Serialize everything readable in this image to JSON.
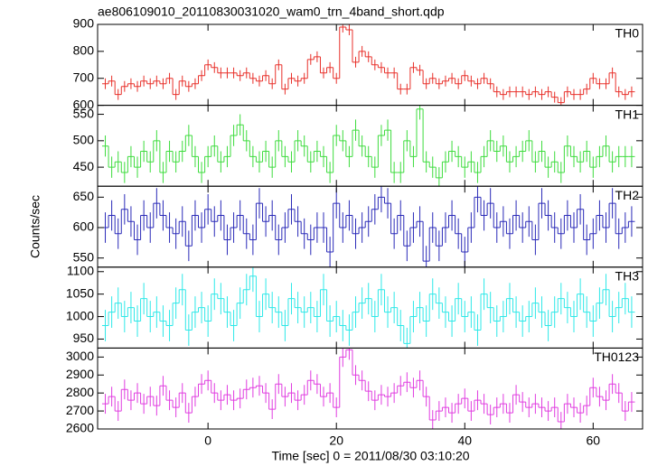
{
  "chart_data": {
    "type": "step",
    "title": "ae806109010_20110830031020_wam0_trn_4band_short.qdp",
    "xlabel": "Time [sec] 0 = 2011/08/30 03:10:20",
    "ylabel": "Counts/sec",
    "xlim": [
      -17.2,
      67.7
    ],
    "xticks": [
      0,
      20,
      40,
      60
    ],
    "x": [
      -16,
      -15,
      -14,
      -13,
      -12,
      -11,
      -10,
      -9,
      -8,
      -7,
      -6,
      -5,
      -4,
      -3,
      -2,
      -1,
      0,
      1,
      2,
      3,
      4,
      5,
      6,
      7,
      8,
      9,
      10,
      11,
      12,
      13,
      14,
      15,
      16,
      17,
      18,
      19,
      20,
      21,
      22,
      23,
      24,
      25,
      26,
      27,
      28,
      29,
      30,
      31,
      32,
      33,
      34,
      35,
      36,
      37,
      38,
      39,
      40,
      41,
      42,
      43,
      44,
      45,
      46,
      47,
      48,
      49,
      50,
      51,
      52,
      53,
      54,
      55,
      56,
      57,
      58,
      59,
      60,
      61,
      62,
      63,
      64,
      65,
      66
    ],
    "panels": [
      {
        "name": "TH0",
        "color": "#e8302a",
        "error": 20,
        "ylim": [
          600,
          900
        ],
        "yticks": [
          600,
          700,
          800,
          900
        ],
        "values": [
          680,
          690,
          640,
          670,
          680,
          670,
          690,
          680,
          690,
          680,
          700,
          640,
          690,
          670,
          680,
          710,
          750,
          740,
          720,
          720,
          720,
          710,
          720,
          700,
          690,
          710,
          680,
          750,
          660,
          700,
          690,
          700,
          770,
          780,
          720,
          740,
          700,
          890,
          880,
          760,
          800,
          780,
          750,
          740,
          720,
          720,
          660,
          660,
          740,
          730,
          680,
          700,
          680,
          690,
          700,
          680,
          710,
          690,
          680,
          700,
          680,
          650,
          640,
          650,
          650,
          650,
          640,
          650,
          640,
          650,
          630,
          610,
          650,
          640,
          640,
          660,
          700,
          680,
          680,
          720,
          650,
          640,
          650
        ]
      },
      {
        "name": "TH1",
        "color": "#3ddc3d",
        "error": 20,
        "ylim": [
          414,
          567
        ],
        "yticks": [
          450,
          500,
          550
        ],
        "values": [
          490,
          450,
          460,
          440,
          470,
          450,
          480,
          460,
          500,
          440,
          480,
          460,
          480,
          510,
          470,
          440,
          470,
          490,
          460,
          470,
          510,
          530,
          500,
          470,
          460,
          480,
          450,
          500,
          470,
          460,
          500,
          490,
          460,
          480,
          470,
          440,
          510,
          500,
          470,
          520,
          490,
          470,
          450,
          510,
          520,
          440,
          440,
          500,
          470,
          560,
          460,
          450,
          430,
          460,
          480,
          470,
          450,
          460,
          440,
          470,
          500,
          480,
          490,
          460,
          470,
          480,
          500,
          460,
          480,
          450,
          460,
          440,
          490,
          470,
          460,
          480,
          450,
          470,
          490,
          460,
          470,
          470,
          470
        ]
      },
      {
        "name": "TH2",
        "color": "#2a2ab8",
        "error": 25,
        "ylim": [
          535,
          668
        ],
        "yticks": [
          550,
          600,
          650
        ],
        "values": [
          600,
          620,
          590,
          630,
          610,
          580,
          620,
          600,
          640,
          620,
          600,
          590,
          610,
          570,
          620,
          600,
          630,
          610,
          620,
          580,
          600,
          620,
          590,
          580,
          640,
          610,
          620,
          580,
          600,
          630,
          610,
          590,
          580,
          600,
          600,
          560,
          640,
          600,
          620,
          590,
          600,
          610,
          630,
          650,
          640,
          590,
          620,
          570,
          600,
          610,
          545,
          600,
          570,
          600,
          620,
          590,
          560,
          600,
          650,
          620,
          640,
          600,
          610,
          590,
          620,
          600,
          610,
          580,
          640,
          620,
          600,
          590,
          620,
          600,
          630,
          580,
          590,
          620,
          600,
          640,
          590,
          600,
          610
        ]
      },
      {
        "name": "TH3",
        "color": "#2de8e8",
        "error": 35,
        "ylim": [
          930,
          1110
        ],
        "yticks": [
          950,
          1000,
          1050,
          1100
        ],
        "values": [
          980,
          1010,
          1030,
          1000,
          1020,
          990,
          1040,
          1000,
          1010,
          990,
          980,
          1030,
          1060,
          970,
          1010,
          1020,
          990,
          1050,
          1040,
          1010,
          980,
          1030,
          1060,
          1090,
          1000,
          1050,
          1020,
          1010,
          980,
          1040,
          1020,
          1010,
          1020,
          1000,
          1060,
          990,
          1000,
          980,
          970,
          1010,
          1030,
          1040,
          1000,
          1060,
          1010,
          1020,
          980,
          940,
          1000,
          1020,
          990,
          1050,
          1030,
          1010,
          990,
          1040,
          1000,
          1010,
          970,
          1050,
          1020,
          990,
          1000,
          1040,
          1010,
          990,
          1000,
          1030,
          1010,
          980,
          1010,
          1040,
          1020,
          1000,
          1050,
          1010,
          990,
          1030,
          1060,
          1000,
          1020,
          1040,
          1010
        ]
      },
      {
        "name": "TH0123",
        "color": "#e03ce0",
        "error": 55,
        "ylim": [
          2600,
          3050
        ],
        "yticks": [
          2600,
          2700,
          2800,
          2900,
          3000
        ],
        "values": [
          2740,
          2780,
          2700,
          2820,
          2760,
          2800,
          2740,
          2780,
          2730,
          2840,
          2760,
          2720,
          2800,
          2690,
          2780,
          2850,
          2870,
          2800,
          2760,
          2790,
          2760,
          2770,
          2820,
          2830,
          2840,
          2800,
          2710,
          2850,
          2780,
          2800,
          2760,
          2790,
          2870,
          2850,
          2780,
          2800,
          2720,
          3000,
          3040,
          2900,
          2870,
          2810,
          2760,
          2790,
          2780,
          2800,
          2840,
          2860,
          2830,
          2870,
          2780,
          2650,
          2700,
          2720,
          2690,
          2740,
          2770,
          2700,
          2760,
          2740,
          2680,
          2720,
          2740,
          2690,
          2790,
          2750,
          2720,
          2740,
          2720,
          2700,
          2720,
          2640,
          2740,
          2720,
          2690,
          2730,
          2830,
          2780,
          2760,
          2850,
          2800,
          2700,
          2750
        ]
      }
    ]
  }
}
